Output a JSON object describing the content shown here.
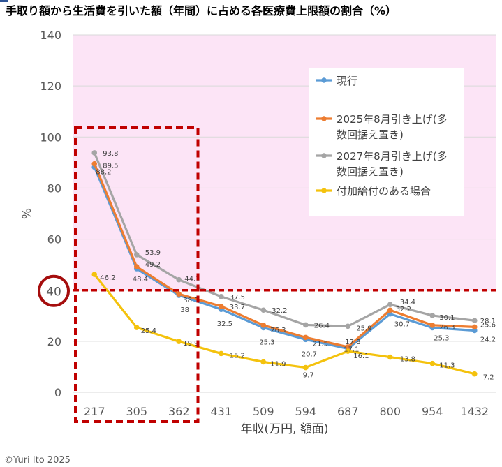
{
  "chart_data": {
    "type": "line",
    "title": "手取り額から生活費を引いた額（年間）に占める各医療費上限額の割合（%）",
    "ylabel": "%",
    "xlabel": "年収(万円, 額面)",
    "categories": [
      "217",
      "305",
      "362",
      "431",
      "509",
      "594",
      "687",
      "800",
      "954",
      "1432"
    ],
    "ylim": [
      0,
      140
    ],
    "yticks": [
      0,
      20,
      40,
      60,
      80,
      100,
      120,
      140
    ],
    "grid": true,
    "legend_position": "top-right",
    "series": [
      {
        "name": "現行",
        "color": "#5b9bd5",
        "values": [
          88.2,
          48.4,
          38.0,
          32.5,
          25.3,
          20.7,
          17.1,
          30.7,
          25.3,
          24.2
        ]
      },
      {
        "name": "2025年8月引き上げ(多数回据え置き)",
        "color": "#ed7d31",
        "values": [
          89.5,
          49.2,
          38.5,
          33.7,
          26.3,
          21.5,
          17.8,
          32.2,
          26.3,
          25.6
        ]
      },
      {
        "name": "2027年8月引き上げ(多数回据え置き)",
        "color": "#a5a5a5",
        "values": [
          93.8,
          53.9,
          44.1,
          37.5,
          32.2,
          26.4,
          25.9,
          34.4,
          30.1,
          28.1
        ]
      },
      {
        "name": "付加給付のある場合",
        "color": "#f4c20d",
        "values": [
          46.2,
          25.4,
          19.9,
          15.2,
          11.9,
          9.7,
          16.1,
          13.8,
          11.3,
          7.2
        ]
      }
    ],
    "legend_lines": [
      [
        "現行"
      ],
      [
        "2025年8月引き上げ(多",
        "数回据え置き)"
      ],
      [
        "2027年8月引き上げ(多",
        "数回据え置き)"
      ],
      [
        "付加給付のある場合"
      ]
    ],
    "highlight_region_color": "#fce4f6",
    "threshold_line_value": 40,
    "threshold_circle_label": "40",
    "emphasis_color": "#c00000",
    "emphasis_box_categories": [
      "217",
      "362"
    ],
    "grid_color": "#d9d9d9",
    "axis_text_color": "#595959"
  },
  "copyright": "©Yuri Ito 2025"
}
